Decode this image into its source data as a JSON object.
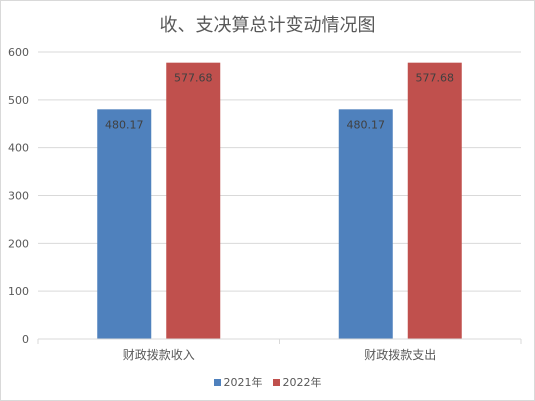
{
  "chart_data": {
    "type": "bar",
    "title": "收、支决算总计变动情况图",
    "categories": [
      "财政拨款收入",
      "财政拨款支出"
    ],
    "series": [
      {
        "name": "2021年",
        "values": [
          480.17,
          480.17
        ],
        "labels": [
          "480.17",
          "480.17"
        ],
        "color": "#4f81bd"
      },
      {
        "name": "2022年",
        "values": [
          577.68,
          577.68
        ],
        "labels": [
          "577.68",
          "577.68"
        ],
        "color": "#c0504d"
      }
    ],
    "ylim": [
      0,
      600
    ],
    "yticks": [
      0,
      100,
      200,
      300,
      400,
      500,
      600
    ],
    "grid": true,
    "legend": "bottom"
  }
}
